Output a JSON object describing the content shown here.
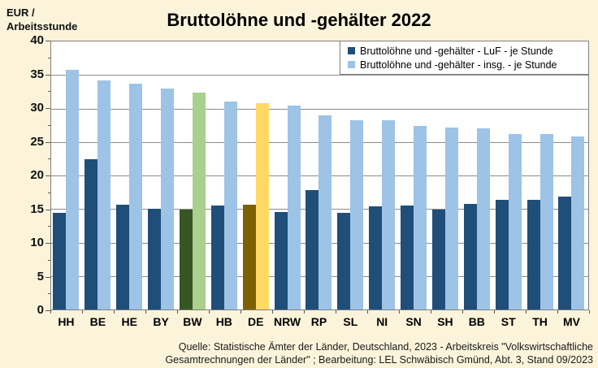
{
  "page": {
    "background": "#FBF4DA",
    "title": "Bruttolöhne und -gehälter 2022",
    "y_axis_unit": "EUR /\nArbeitsstunde"
  },
  "legend": {
    "position": "top-right",
    "entries": [
      {
        "label": "Bruttolöhne und -gehälter - LuF - je Stunde",
        "color": "#1F4E79"
      },
      {
        "label": "Bruttolöhne und -gehälter - insg. - je Stunde",
        "color": "#9DC3E6"
      }
    ]
  },
  "chart_data": {
    "type": "bar",
    "title": "Bruttolöhne und -gehälter 2022",
    "ylabel": "EUR / Arbeitsstunde",
    "xlabel": "",
    "ylim": [
      0,
      40
    ],
    "ytick_step": 5,
    "yticks": [
      0,
      5,
      10,
      15,
      20,
      25,
      30,
      35,
      40
    ],
    "grid": "horizontal",
    "legend_position": "top-right",
    "categories": [
      "HH",
      "BE",
      "HE",
      "BY",
      "BW",
      "HB",
      "DE",
      "NRW",
      "RP",
      "SL",
      "NI",
      "SN",
      "SH",
      "BB",
      "ST",
      "TH",
      "MV"
    ],
    "series": [
      {
        "name": "Bruttolöhne und -gehälter - LuF - je Stunde",
        "values": [
          14.4,
          22.4,
          15.6,
          15.0,
          14.9,
          15.5,
          15.6,
          14.5,
          17.8,
          14.4,
          15.4,
          15.5,
          14.9,
          15.7,
          16.4,
          16.4,
          16.8
        ]
      },
      {
        "name": "Bruttolöhne und -gehälter - insg. - je Stunde",
        "values": [
          35.7,
          34.2,
          33.7,
          33.0,
          32.4,
          31.0,
          30.8,
          30.4,
          29.0,
          28.3,
          28.3,
          27.4,
          27.2,
          27.0,
          26.2,
          26.2,
          25.8
        ]
      }
    ],
    "bar_colors": {
      "default": [
        "#1F4E79",
        "#9DC3E6"
      ],
      "BW": [
        "#375623",
        "#A9D08E"
      ],
      "DE": [
        "#7F6000",
        "#FFD966"
      ]
    }
  },
  "footer": {
    "source_line1": "Quelle: Statistische Ämter der Länder, Deutschland, 2023 - Arbeitskreis \"Volkswirtschaftliche",
    "source_line2": "Gesamtrechnungen  der Länder\" ; Bearbeitung: LEL Schwäbisch Gmünd, Abt. 3, Stand 09/2023"
  }
}
